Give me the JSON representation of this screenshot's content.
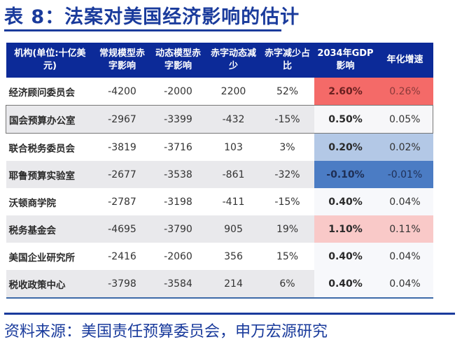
{
  "title": "表 8：法案对美国经济影响的估计",
  "table": {
    "headers": [
      "机构(单位:十亿美元)",
      "常规模型赤字影响",
      "动态模型赤字影响",
      "赤字动态减少",
      "赤字减少占比",
      "2034年GDP影响",
      "年化增速"
    ],
    "rows": [
      {
        "org": "经济顾问委员会",
        "static": "-4200",
        "dynamic": "-2000",
        "reduction": "2200",
        "share": "52%",
        "gdp2034": "2.60%",
        "annual": "0.26%",
        "bg": "#f46a68",
        "annual_color": "#8a3a3a"
      },
      {
        "org": "国会预算办公室",
        "static": "-2967",
        "dynamic": "-3399",
        "reduction": "-432",
        "share": "-15%",
        "gdp2034": "0.50%",
        "annual": "0.05%",
        "bg": "#f7f7f9",
        "annual_color": "#333333"
      },
      {
        "org": "联合税务委员会",
        "static": "-3819",
        "dynamic": "-3716",
        "reduction": "103",
        "share": "3%",
        "gdp2034": "0.20%",
        "annual": "0.02%",
        "bg": "#b3c8e6",
        "annual_color": "#333333"
      },
      {
        "org": "耶鲁预算实验室",
        "static": "-2677",
        "dynamic": "-3538",
        "reduction": "-861",
        "share": "-32%",
        "gdp2034": "-0.10%",
        "annual": "-0.01%",
        "bg": "#4b7cc4",
        "annual_color": "#1f2f55"
      },
      {
        "org": "沃顿商学院",
        "static": "-2787",
        "dynamic": "-3198",
        "reduction": "-411",
        "share": "-15%",
        "gdp2034": "0.40%",
        "annual": "0.04%",
        "bg": "#f7f8fb",
        "annual_color": "#333333"
      },
      {
        "org": "税务基金会",
        "static": "-4695",
        "dynamic": "-3790",
        "reduction": "905",
        "share": "19%",
        "gdp2034": "1.10%",
        "annual": "0.11%",
        "bg": "#f9c9c8",
        "annual_color": "#333333"
      },
      {
        "org": "美国企业研究所",
        "static": "-2416",
        "dynamic": "-2060",
        "reduction": "356",
        "share": "15%",
        "gdp2034": "0.40%",
        "annual": "0.04%",
        "bg": "#f7f8fb",
        "annual_color": "#333333"
      },
      {
        "org": "税收政策中心",
        "static": "-3798",
        "dynamic": "-3584",
        "reduction": "214",
        "share": "6%",
        "gdp2034": "0.40%",
        "annual": "0.04%",
        "bg": "#f7f8fb",
        "annual_color": "#333333"
      }
    ]
  },
  "source": "资料来源：美国责任预算委员会，申万宏源研究"
}
